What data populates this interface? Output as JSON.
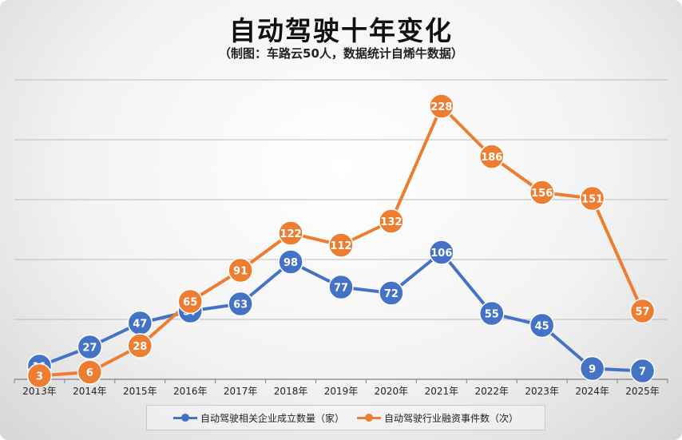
{
  "title": "自动驾驶十年变化",
  "subtitle": "（制图：车路云50人，数据统计自烯牛数据）",
  "colors": {
    "blue": "#4472C4",
    "orange": "#ED7D31",
    "grid": "#bcbcbc",
    "axis": "#808080"
  },
  "chart_data": {
    "type": "line",
    "categories": [
      "2013年",
      "2014年",
      "2015年",
      "2016年",
      "2017年",
      "2018年",
      "2019年",
      "2020年",
      "2021年",
      "2022年",
      "2023年",
      "2024年",
      "2025年"
    ],
    "series": [
      {
        "name": "自动驾驶相关企业成立数量（家）",
        "color": "#4472C4",
        "values": [
          11,
          27,
          47,
          57,
          63,
          98,
          77,
          72,
          106,
          55,
          45,
          9,
          7
        ]
      },
      {
        "name": "自动驾驶行业融资事件数（次）",
        "color": "#ED7D31",
        "values": [
          3,
          6,
          28,
          65,
          91,
          122,
          112,
          132,
          228,
          186,
          156,
          151,
          57
        ]
      }
    ],
    "ylim": [
      0,
      250
    ],
    "grid": true,
    "data_labels": true,
    "legend_position": "bottom"
  }
}
